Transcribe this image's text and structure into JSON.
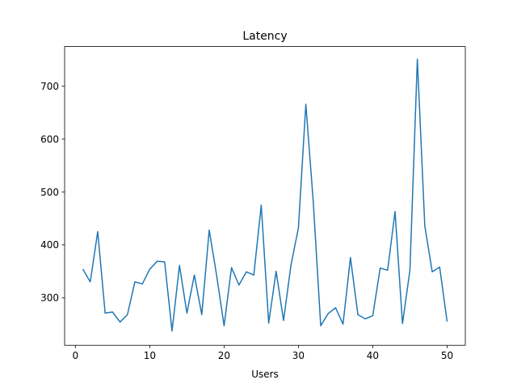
{
  "chart_data": {
    "type": "line",
    "title": "Latency",
    "xlabel": "Users",
    "ylabel": "",
    "xlim": [
      -1.45,
      52.45
    ],
    "ylim": [
      210,
      775
    ],
    "xticks": [
      0,
      10,
      20,
      30,
      40,
      50
    ],
    "yticks": [
      300,
      400,
      500,
      600,
      700
    ],
    "grid": false,
    "legend": "none",
    "series": [
      {
        "color": "#1f77b4",
        "x": [
          1,
          2,
          3,
          4,
          5,
          6,
          7,
          8,
          9,
          10,
          11,
          12,
          13,
          14,
          15,
          16,
          17,
          18,
          19,
          20,
          21,
          22,
          23,
          24,
          25,
          26,
          27,
          28,
          29,
          30,
          31,
          32,
          33,
          34,
          35,
          36,
          37,
          38,
          39,
          40,
          41,
          42,
          43,
          44,
          45,
          46,
          47,
          48,
          49,
          50
        ],
        "y": [
          354,
          330,
          425,
          271,
          273,
          254,
          268,
          330,
          326,
          354,
          369,
          368,
          237,
          361,
          271,
          343,
          268,
          428,
          342,
          247,
          357,
          324,
          349,
          343,
          475,
          252,
          350,
          257,
          362,
          432,
          666,
          481,
          247,
          270,
          281,
          250,
          376,
          268,
          260,
          266,
          356,
          352,
          463,
          251,
          352,
          751,
          436,
          349,
          358,
          255
        ]
      }
    ]
  }
}
